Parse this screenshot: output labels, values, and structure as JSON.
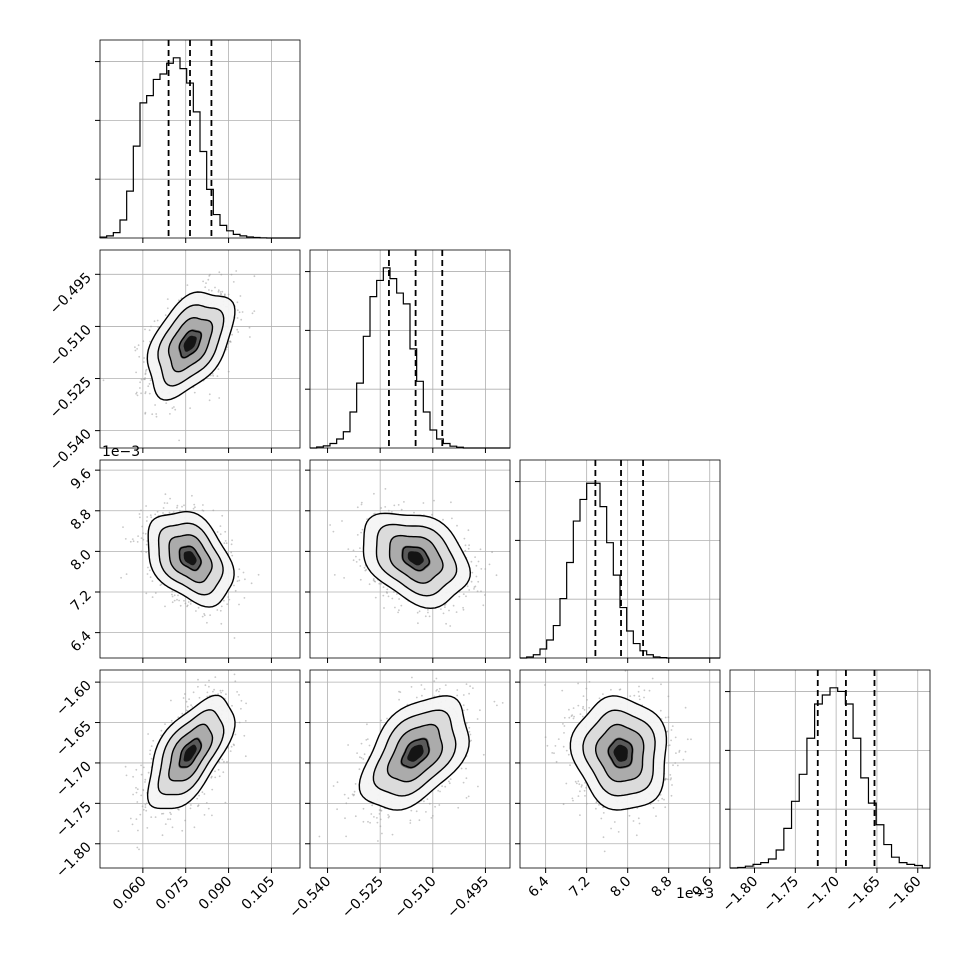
{
  "chart_data": {
    "type": "corner",
    "grid": true,
    "parameters": [
      {
        "range": [
          0.045,
          0.115
        ],
        "ticks": [
          "0.060",
          "0.075",
          "0.090",
          "0.105"
        ],
        "tick_values": [
          0.06,
          0.075,
          0.09,
          0.105
        ],
        "offset": "",
        "quantiles": [
          0.069,
          0.0765,
          0.084
        ],
        "hist": [
          0.005,
          0.012,
          0.03,
          0.1,
          0.26,
          0.51,
          0.75,
          0.79,
          0.88,
          0.91,
          0.97,
          1.0,
          0.94,
          0.86,
          0.7,
          0.48,
          0.27,
          0.13,
          0.07,
          0.04,
          0.02,
          0.012,
          0.006,
          0.003,
          0.001,
          0.0,
          0.0,
          0.0,
          0.0,
          0.0
        ]
      },
      {
        "range": [
          -0.545,
          -0.488
        ],
        "ticks": [
          "−0.540",
          "−0.525",
          "−0.510",
          "−0.495"
        ],
        "tick_values": [
          -0.54,
          -0.525,
          -0.51,
          -0.495
        ],
        "offset": "",
        "quantiles": [
          -0.5225,
          -0.5149,
          -0.5073
        ],
        "hist": [
          0.0,
          0.006,
          0.012,
          0.025,
          0.05,
          0.09,
          0.2,
          0.36,
          0.62,
          0.84,
          0.93,
          1.0,
          0.94,
          0.86,
          0.8,
          0.55,
          0.37,
          0.2,
          0.1,
          0.05,
          0.025,
          0.01,
          0.004,
          0.0,
          0.0,
          0.0,
          0.0,
          0.0,
          0.0,
          0.0
        ]
      },
      {
        "range": [
          5.9,
          9.8
        ],
        "ticks": [
          "6.4",
          "7.2",
          "8.0",
          "8.8",
          "9.6"
        ],
        "tick_values": [
          6.4,
          7.2,
          8.0,
          8.8,
          9.6
        ],
        "offset": "1e−3",
        "quantiles": [
          7.37,
          7.87,
          8.3
        ],
        "hist": [
          0.0,
          0.006,
          0.018,
          0.05,
          0.1,
          0.18,
          0.33,
          0.53,
          0.76,
          0.88,
          0.97,
          0.97,
          0.84,
          0.64,
          0.46,
          0.28,
          0.15,
          0.08,
          0.04,
          0.018,
          0.006,
          0.002,
          0.0,
          0.0,
          0.0,
          0.0,
          0.0,
          0.0,
          0.0,
          0.0
        ]
      },
      {
        "range": [
          -1.83,
          -1.585
        ],
        "ticks": [
          "−1.80",
          "−1.75",
          "−1.70",
          "−1.65",
          "−1.60"
        ],
        "tick_values": [
          -1.8,
          -1.75,
          -1.7,
          -1.65,
          -1.6
        ],
        "offset": "",
        "quantiles": [
          -1.7225,
          -1.688,
          -1.653
        ],
        "hist": [
          0.0,
          0.003,
          0.01,
          0.02,
          0.03,
          0.05,
          0.1,
          0.22,
          0.37,
          0.52,
          0.72,
          0.91,
          0.96,
          1.0,
          0.98,
          0.91,
          0.72,
          0.5,
          0.36,
          0.24,
          0.13,
          0.06,
          0.03,
          0.02,
          0.014,
          0.0
        ]
      }
    ],
    "pairs": [
      {
        "row": 1,
        "col": 0,
        "mean": [
          0.0765,
          -0.5149
        ],
        "sd": [
          0.0075,
          0.0076
        ],
        "rho": 0.45
      },
      {
        "row": 2,
        "col": 0,
        "mean": [
          0.0765,
          7.87
        ],
        "sd": [
          0.0075,
          0.46
        ],
        "rho": -0.35
      },
      {
        "row": 2,
        "col": 1,
        "mean": [
          -0.5149,
          7.87
        ],
        "sd": [
          0.0076,
          0.46
        ],
        "rho": -0.3
      },
      {
        "row": 3,
        "col": 0,
        "mean": [
          0.0765,
          -1.688
        ],
        "sd": [
          0.0075,
          0.035
        ],
        "rho": 0.6
      },
      {
        "row": 3,
        "col": 1,
        "mean": [
          -0.5149,
          -1.688
        ],
        "sd": [
          0.0076,
          0.035
        ],
        "rho": 0.45
      },
      {
        "row": 3,
        "col": 2,
        "mean": [
          7.87,
          -1.688
        ],
        "sd": [
          0.46,
          0.035
        ],
        "rho": -0.08
      }
    ],
    "styles": {
      "axis_color": "#000000",
      "grid_color": "#b0b0b0",
      "hist_color": "#000000",
      "contour_color": "#000000",
      "point_color": "#9a9a9a"
    }
  }
}
